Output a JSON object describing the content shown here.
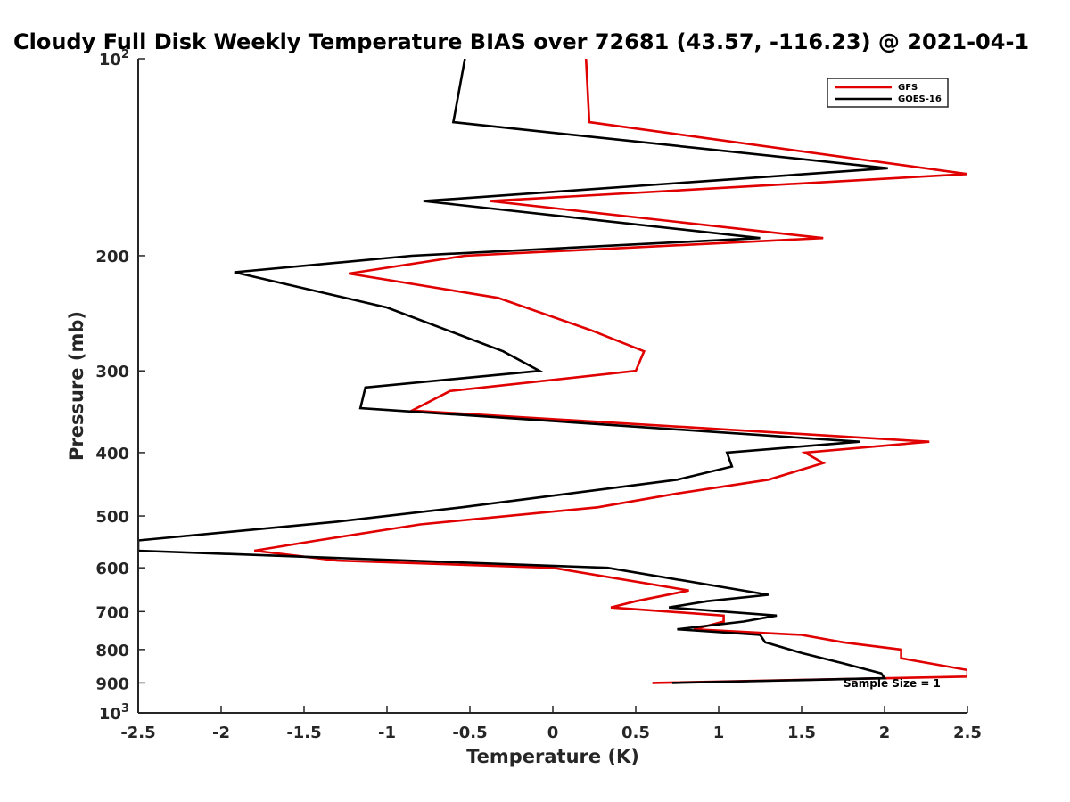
{
  "chart_data": {
    "type": "line",
    "title": "Cloudy Full Disk Weekly Temperature BIAS over 72681 (43.57, -116.23) @ 2021-04-1",
    "xlabel": "Temperature (K)",
    "ylabel": "Pressure (mb)",
    "xlim": [
      -2.5,
      2.5
    ],
    "ylim": [
      100,
      1000
    ],
    "y_scale": "log",
    "y_direction": "reversed",
    "x_ticks": [
      "-2.5",
      "-2",
      "-1.5",
      "-1",
      "-0.5",
      "0",
      "0.5",
      "1",
      "1.5",
      "2",
      "2.5"
    ],
    "y_ticks": [
      {
        "value": 100,
        "base": "10",
        "exp": "2"
      },
      {
        "value": 200,
        "label": "200"
      },
      {
        "value": 300,
        "label": "300"
      },
      {
        "value": 400,
        "label": "400"
      },
      {
        "value": 500,
        "label": "500"
      },
      {
        "value": 600,
        "label": "600"
      },
      {
        "value": 700,
        "label": "700"
      },
      {
        "value": 800,
        "label": "800"
      },
      {
        "value": 900,
        "label": "900"
      },
      {
        "value": 1000,
        "base": "10",
        "exp": "3"
      }
    ],
    "grid": false,
    "legend_position": "top-right",
    "annotation": "Sample Size = 1",
    "series": [
      {
        "name": "GFS",
        "color": "#e00000",
        "points": [
          [
            0.2,
            100
          ],
          [
            0.22,
            125
          ],
          [
            2.5,
            150
          ],
          [
            -0.38,
            165
          ],
          [
            1.63,
            188
          ],
          [
            -0.53,
            200
          ],
          [
            -1.23,
            213
          ],
          [
            -0.33,
            232
          ],
          [
            0.23,
            260
          ],
          [
            0.55,
            280
          ],
          [
            0.5,
            300
          ],
          [
            -0.62,
            322
          ],
          [
            -0.85,
            345
          ],
          [
            2.27,
            385
          ],
          [
            1.52,
            400
          ],
          [
            1.63,
            415
          ],
          [
            1.3,
            440
          ],
          [
            0.75,
            462
          ],
          [
            0.27,
            485
          ],
          [
            -0.8,
            515
          ],
          [
            -1.42,
            545
          ],
          [
            -1.8,
            565
          ],
          [
            -1.3,
            585
          ],
          [
            0.0,
            600
          ],
          [
            0.82,
            650
          ],
          [
            0.5,
            675
          ],
          [
            0.35,
            690
          ],
          [
            1.03,
            710
          ],
          [
            1.03,
            725
          ],
          [
            0.85,
            745
          ],
          [
            1.5,
            760
          ],
          [
            1.75,
            780
          ],
          [
            2.1,
            800
          ],
          [
            2.1,
            825
          ],
          [
            2.5,
            860
          ],
          [
            2.5,
            880
          ],
          [
            0.6,
            900
          ]
        ]
      },
      {
        "name": "GOES-16",
        "color": "#000000",
        "points": [
          [
            -0.53,
            100
          ],
          [
            -0.6,
            125
          ],
          [
            2.02,
            147
          ],
          [
            -0.78,
            165
          ],
          [
            1.25,
            188
          ],
          [
            -0.85,
            200
          ],
          [
            -1.92,
            212
          ],
          [
            -1.0,
            240
          ],
          [
            -0.3,
            280
          ],
          [
            -0.08,
            300
          ],
          [
            -1.13,
            318
          ],
          [
            -1.16,
            342
          ],
          [
            1.85,
            385
          ],
          [
            1.05,
            400
          ],
          [
            1.08,
            420
          ],
          [
            0.75,
            440
          ],
          [
            -0.55,
            485
          ],
          [
            -1.3,
            510
          ],
          [
            -2.5,
            545
          ],
          [
            -2.5,
            565
          ],
          [
            0.33,
            600
          ],
          [
            1.3,
            660
          ],
          [
            0.93,
            675
          ],
          [
            0.7,
            690
          ],
          [
            1.35,
            710
          ],
          [
            1.15,
            725
          ],
          [
            0.75,
            745
          ],
          [
            1.25,
            760
          ],
          [
            1.28,
            780
          ],
          [
            1.5,
            810
          ],
          [
            1.75,
            840
          ],
          [
            1.98,
            870
          ],
          [
            2.0,
            885
          ],
          [
            0.72,
            900
          ]
        ]
      }
    ]
  }
}
